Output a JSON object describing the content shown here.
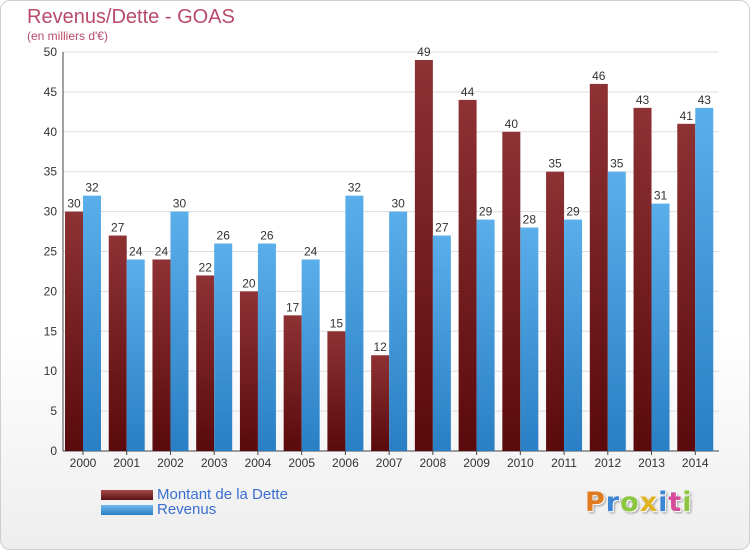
{
  "header": {
    "title": "Revenus/Dette - GOAS",
    "subtitle": "(en milliers d'€)"
  },
  "chart_data": {
    "type": "bar",
    "categories": [
      "2000",
      "2001",
      "2002",
      "2003",
      "2004",
      "2005",
      "2006",
      "2007",
      "2008",
      "2009",
      "2010",
      "2011",
      "2012",
      "2013",
      "2014"
    ],
    "series": [
      {
        "name": "Montant de la Dette",
        "color": "#7a1f22",
        "values": [
          30,
          27,
          24,
          22,
          20,
          17,
          15,
          12,
          49,
          44,
          40,
          35,
          46,
          43,
          41
        ]
      },
      {
        "name": "Revenus",
        "color": "#3d9be0",
        "values": [
          32,
          24,
          30,
          26,
          26,
          24,
          32,
          30,
          27,
          29,
          28,
          29,
          35,
          31,
          43
        ]
      }
    ],
    "yticks": [
      0,
      5,
      10,
      15,
      20,
      25,
      30,
      35,
      40,
      45,
      50
    ],
    "ylim": [
      0,
      50
    ],
    "grid": true,
    "legend_position": "bottom-left"
  },
  "logo": {
    "letters": [
      "P",
      "r",
      "o",
      "x",
      "i",
      "t",
      "i"
    ],
    "colors": [
      "#e07b1f",
      "#3a86d4",
      "#8cc63f",
      "#e0b31f",
      "#3a86d4",
      "#d64a9a",
      "#8cc63f"
    ]
  }
}
